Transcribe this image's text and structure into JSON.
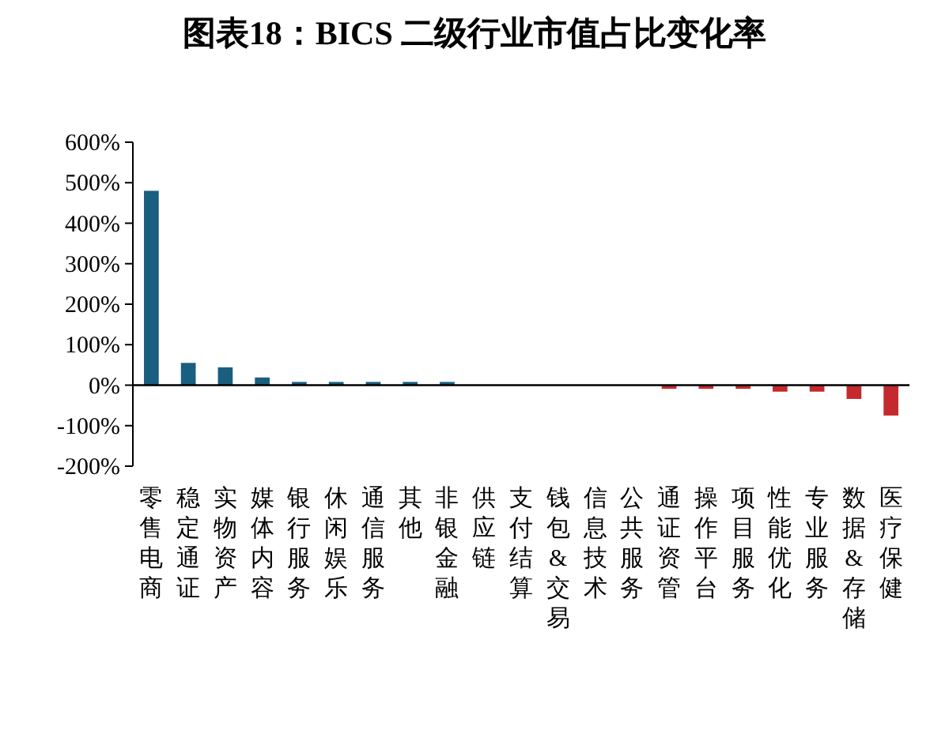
{
  "chart_data": {
    "type": "bar",
    "title": "图表18：BICS 二级行业市值占比变化率",
    "categories": [
      "零售电商",
      "稳定通证",
      "实物资产",
      "媒体内容",
      "银行服务",
      "休闲娱乐",
      "通信服务",
      "其他",
      "非银金融",
      "供应链",
      "支付结算",
      "钱包&交易",
      "信息技术",
      "公共服务",
      "通证资管",
      "操作平台",
      "项目服务",
      "性能优化",
      "专业服务",
      "数据&存储",
      "医疗保健"
    ],
    "values": [
      480,
      55,
      44,
      19,
      8,
      8,
      8,
      8,
      8,
      0,
      0,
      0,
      0,
      0,
      -9,
      -9,
      -9,
      -16,
      -16,
      -34,
      -75
    ],
    "colors": [
      "#1a5e80",
      "#1a5e80",
      "#1a5e80",
      "#1a5e80",
      "#1a5e80",
      "#1a5e80",
      "#1a5e80",
      "#1a5e80",
      "#1a5e80",
      "#1a5e80",
      "#1a5e80",
      "#1a5e80",
      "#1a5e80",
      "#1a5e80",
      "#c4292d",
      "#c4292d",
      "#c4292d",
      "#c4292d",
      "#c4292d",
      "#c4292d",
      "#c4292d"
    ],
    "ylim": [
      -200,
      600
    ],
    "yticks": [
      {
        "value": -200,
        "label": "-200%"
      },
      {
        "value": -100,
        "label": "-100%"
      },
      {
        "value": 0,
        "label": "0%"
      },
      {
        "value": 100,
        "label": "100%"
      },
      {
        "value": 200,
        "label": "200%"
      },
      {
        "value": 300,
        "label": "300%"
      },
      {
        "value": 400,
        "label": "400%"
      },
      {
        "value": 500,
        "label": "500%"
      },
      {
        "value": 600,
        "label": "600%"
      }
    ],
    "relative": false
  }
}
